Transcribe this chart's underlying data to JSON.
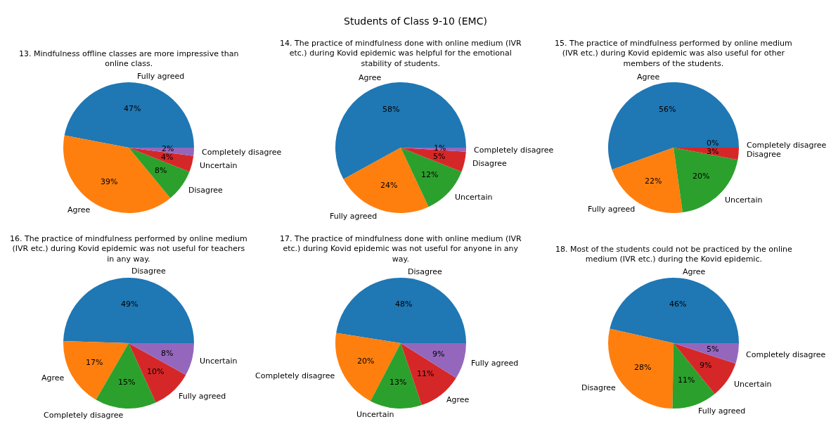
{
  "chart_data": [
    {
      "type": "pie",
      "annotations": [
        "Students of Class 9-10 (EMC)"
      ],
      "title": "13. Mindfulness offline classes are more impressive than online class.",
      "categories": [
        "Fully agreed",
        "Agree",
        "Disagree",
        "Uncertain",
        "Completely disagree"
      ],
      "values": [
        47,
        39,
        8,
        4,
        2
      ],
      "value_labels": [
        "47%",
        "39%",
        "8%",
        "4%",
        "2%"
      ],
      "colors": [
        "#1f77b4",
        "#ff7f0e",
        "#2ca02c",
        "#d62728",
        "#9467bd"
      ]
    },
    {
      "type": "pie",
      "title": "14. The practice of mindfulness done with online medium (IVR etc.) during Kovid epidemic was helpful for the emotional stability of students.",
      "categories": [
        "Agree",
        "Fully agreed",
        "Uncertain",
        "Disagree",
        "Completely disagree"
      ],
      "values": [
        58,
        24,
        12,
        5,
        1
      ],
      "value_labels": [
        "58%",
        "24%",
        "12%",
        "5%",
        "1%"
      ],
      "colors": [
        "#1f77b4",
        "#ff7f0e",
        "#2ca02c",
        "#d62728",
        "#9467bd"
      ]
    },
    {
      "type": "pie",
      "title": "15. The practice of mindfulness performed by online medium (IVR etc.) during Kovid epidemic was also useful for other members of the students.",
      "categories": [
        "Agree",
        "Fully agreed",
        "Uncertain",
        "Disagree",
        "Completely disagree"
      ],
      "values": [
        56,
        22,
        20,
        3,
        0
      ],
      "value_labels": [
        "56%",
        "22%",
        "20%",
        "3%",
        "0%"
      ],
      "colors": [
        "#1f77b4",
        "#ff7f0e",
        "#2ca02c",
        "#d62728",
        "#9467bd"
      ]
    },
    {
      "type": "pie",
      "title": "16. The practice of mindfulness performed by online medium (IVR etc.) during Kovid epidemic was not useful for teachers in any way.",
      "categories": [
        "Disagree",
        "Agree",
        "Completely disagree",
        "Fully agreed",
        "Uncertain"
      ],
      "values": [
        49,
        17,
        15,
        10,
        8
      ],
      "value_labels": [
        "49%",
        "17%",
        "15%",
        "10%",
        "8%"
      ],
      "colors": [
        "#1f77b4",
        "#ff7f0e",
        "#2ca02c",
        "#d62728",
        "#9467bd"
      ]
    },
    {
      "type": "pie",
      "title": "17. The practice of mindfulness done with online medium (IVR etc.) during Kovid epidemic was not useful for anyone in any way.",
      "categories": [
        "Disagree",
        "Completely disagree",
        "Uncertain",
        "Agree",
        "Fully agreed"
      ],
      "values": [
        48,
        20,
        13,
        11,
        9
      ],
      "value_labels": [
        "48%",
        "20%",
        "13%",
        "11%",
        "9%"
      ],
      "colors": [
        "#1f77b4",
        "#ff7f0e",
        "#2ca02c",
        "#d62728",
        "#9467bd"
      ]
    },
    {
      "type": "pie",
      "title": "18. Most of the students could not be practiced by the online medium (IVR etc.) during the Kovid epidemic.",
      "categories": [
        "Agree",
        "Disagree",
        "Fully agreed",
        "Uncertain",
        "Completely disagree"
      ],
      "values": [
        46,
        28,
        11,
        9,
        5
      ],
      "value_labels": [
        "46%",
        "28%",
        "11%",
        "9%",
        "5%"
      ],
      "colors": [
        "#1f77b4",
        "#ff7f0e",
        "#2ca02c",
        "#d62728",
        "#9467bd"
      ]
    }
  ]
}
